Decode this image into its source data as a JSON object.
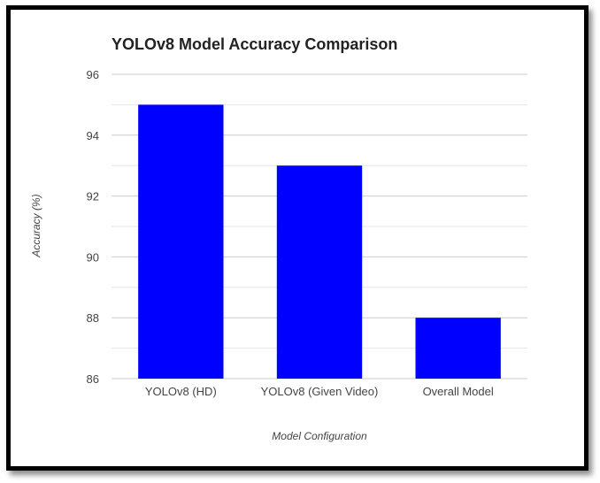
{
  "chart_data": {
    "type": "bar",
    "title": "YOLOv8 Model Accuracy Comparison",
    "xlabel": "Model Configuration",
    "ylabel": "Accuracy (%)",
    "categories": [
      "YOLOv8 (HD)",
      "YOLOv8 (Given Video)",
      "Overall Model"
    ],
    "values": [
      95,
      93,
      88
    ],
    "ylim": [
      86,
      96
    ],
    "yticks": [
      86,
      88,
      90,
      92,
      94,
      96
    ],
    "grid": true,
    "legend": "none",
    "bar_color": "#0000ff",
    "grid_color": "#cccccc",
    "minor_grid_color": "#e6e6e6"
  }
}
